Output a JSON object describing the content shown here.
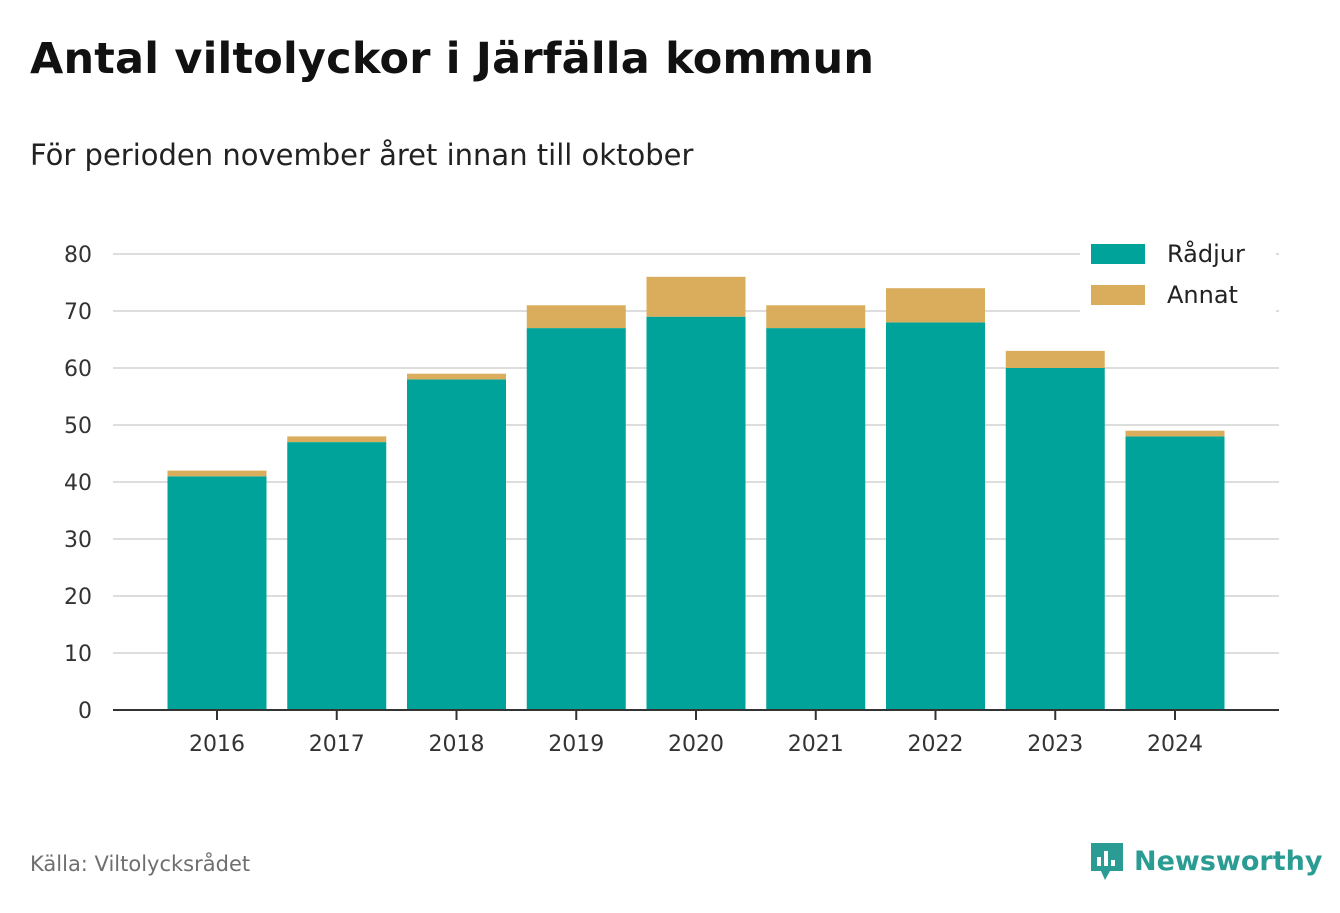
{
  "title": "Antal viltolyckor i Järfälla kommun",
  "subtitle": "För perioden november året innan till oktober",
  "source": "Källa: Viltolycksrådet",
  "brand": "Newsworthy",
  "colors": {
    "radjur": "#00a39a",
    "annat": "#d9ad5b",
    "brand": "#2b9c93"
  },
  "chart_data": {
    "type": "bar",
    "stacked": true,
    "categories": [
      "2016",
      "2017",
      "2018",
      "2019",
      "2020",
      "2021",
      "2022",
      "2023",
      "2024"
    ],
    "series": [
      {
        "name": "Rådjur",
        "values": [
          41,
          47,
          58,
          67,
          69,
          67,
          68,
          60,
          48
        ]
      },
      {
        "name": "Annat",
        "values": [
          1,
          1,
          1,
          4,
          7,
          4,
          6,
          3,
          1
        ]
      }
    ],
    "ylim": [
      0,
      80
    ],
    "yticks": [
      0,
      10,
      20,
      30,
      40,
      50,
      60,
      70,
      80
    ],
    "grid": true,
    "legend": "top-right"
  }
}
